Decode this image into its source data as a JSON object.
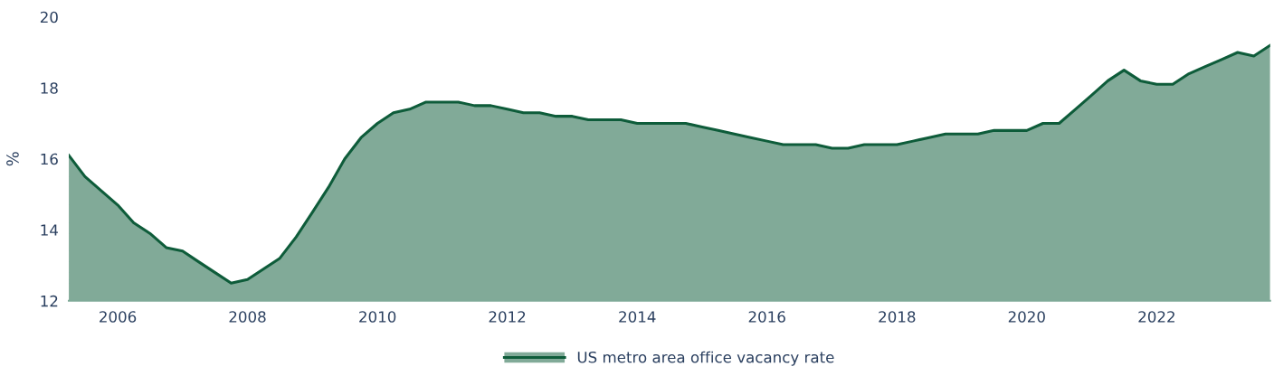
{
  "chart_data": {
    "type": "area",
    "ylabel": "%",
    "x": [
      "2005-04",
      "2005-07",
      "2005-10",
      "2006-01",
      "2006-04",
      "2006-07",
      "2006-10",
      "2007-01",
      "2007-04",
      "2007-07",
      "2007-10",
      "2008-01",
      "2008-04",
      "2008-07",
      "2008-10",
      "2009-01",
      "2009-04",
      "2009-07",
      "2009-10",
      "2010-01",
      "2010-04",
      "2010-07",
      "2010-10",
      "2011-01",
      "2011-04",
      "2011-07",
      "2011-10",
      "2012-01",
      "2012-04",
      "2012-07",
      "2012-10",
      "2013-01",
      "2013-04",
      "2013-07",
      "2013-10",
      "2014-01",
      "2014-04",
      "2014-07",
      "2014-10",
      "2015-01",
      "2015-04",
      "2015-07",
      "2015-10",
      "2016-01",
      "2016-04",
      "2016-07",
      "2016-10",
      "2017-01",
      "2017-04",
      "2017-07",
      "2017-10",
      "2018-01",
      "2018-04",
      "2018-07",
      "2018-10",
      "2019-01",
      "2019-04",
      "2019-07",
      "2019-10",
      "2020-01",
      "2020-04",
      "2020-07",
      "2020-10",
      "2021-01",
      "2021-04",
      "2021-07",
      "2021-10",
      "2022-01",
      "2022-04",
      "2022-07",
      "2022-10",
      "2023-01",
      "2023-04",
      "2023-07",
      "2023-10"
    ],
    "series": [
      {
        "name": "US metro area office vacancy rate",
        "color": "#0e5c3a",
        "values": [
          16.1,
          15.5,
          15.1,
          14.7,
          14.2,
          13.9,
          13.5,
          13.4,
          13.1,
          12.8,
          12.5,
          12.6,
          12.9,
          13.2,
          13.8,
          14.5,
          15.2,
          16.0,
          16.6,
          17.0,
          17.3,
          17.4,
          17.6,
          17.6,
          17.6,
          17.5,
          17.5,
          17.4,
          17.3,
          17.3,
          17.2,
          17.2,
          17.1,
          17.1,
          17.1,
          17.0,
          17.0,
          17.0,
          17.0,
          16.9,
          16.8,
          16.7,
          16.6,
          16.5,
          16.4,
          16.4,
          16.4,
          16.3,
          16.3,
          16.4,
          16.4,
          16.4,
          16.5,
          16.6,
          16.7,
          16.7,
          16.7,
          16.8,
          16.8,
          16.8,
          17.0,
          17.0,
          17.4,
          17.8,
          18.2,
          18.5,
          18.2,
          18.1,
          18.1,
          18.4,
          18.6,
          18.8,
          19.0,
          18.9,
          19.2
        ]
      }
    ],
    "xlim": [
      "2005-04",
      "2023-10"
    ],
    "xticks": [
      "2006",
      "2008",
      "2010",
      "2012",
      "2014",
      "2016",
      "2018",
      "2020",
      "2022"
    ],
    "ylim": [
      12,
      20
    ],
    "yticks": [
      12,
      14,
      16,
      18,
      20
    ],
    "grid": false,
    "legend": "bottom"
  }
}
